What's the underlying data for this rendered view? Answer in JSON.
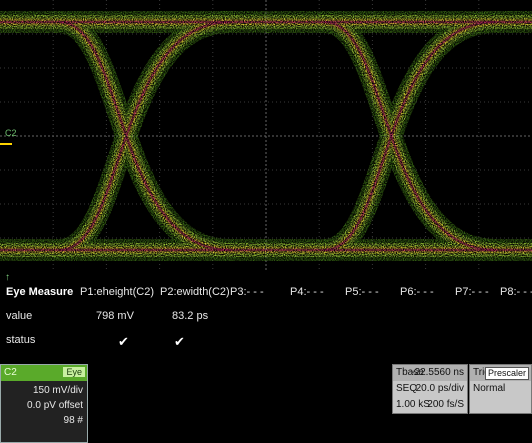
{
  "channel_label": "C2",
  "measure": {
    "headers": [
      "Eye Measure",
      "P1:eheight(C2)",
      "P2:ewidth(C2)",
      "P3:- - -",
      "P4:- - -",
      "P5:- - -",
      "P6:- - -",
      "P7:- - -",
      "P8:- - -"
    ],
    "value_label": "value",
    "values": [
      "798 mV",
      "83.2 ps"
    ],
    "status_label": "status",
    "status_marks": [
      "✔",
      "✔"
    ]
  },
  "channel_box": {
    "name": "C2",
    "tag": "Eye",
    "lines": [
      "150 mV/div",
      "0.0 pV offset",
      "98 #"
    ]
  },
  "timebase": {
    "label": "Tbase",
    "delay": "-22.5560 ns",
    "mode": "SEQ",
    "scale": "20.0 ps/div",
    "samples": "1.00 kS",
    "rate": "200 fs/S"
  },
  "trigger": {
    "label": "Trigger",
    "source": "Prescaler",
    "mode": "Normal"
  },
  "colors": {
    "eye_outer": "#4a8a1a",
    "eye_mid": "#a8d83a",
    "eye_hot": "#ffeb3b",
    "eye_peak": "#e0207a",
    "grid": "#3a3a3a",
    "channel": "#5aaa2a"
  }
}
